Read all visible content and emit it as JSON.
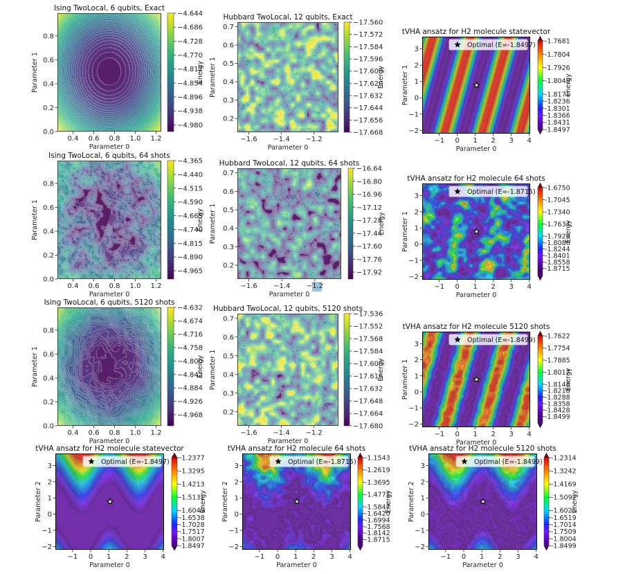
{
  "chart_data": [
    {
      "type": "heatmap",
      "title": "Ising TwoLocal, 6 qubits, Exact",
      "xlabel": "Parameter 0",
      "ylabel": "Parameter 1",
      "xlim": [
        0.25,
        1.25
      ],
      "ylim": [
        0.0,
        0.99
      ],
      "xticks": [
        0.4,
        0.6,
        0.8,
        1.0,
        1.2
      ],
      "xticklabels": [
        "0.4",
        "0.6",
        "0.8",
        "1.0",
        "1.2"
      ],
      "yticks": [
        0.0,
        0.2,
        0.4,
        0.6,
        0.8
      ],
      "yticklabels": [
        "0.0",
        "0.2",
        "0.4",
        "0.6",
        "0.8"
      ],
      "colormap": "viridis",
      "colorbar": {
        "label": "Energy",
        "ticks": [
          "−4.644",
          "−4.686",
          "−4.728",
          "−4.770",
          "−4.812",
          "−4.854",
          "−4.896",
          "−4.938",
          "−4.980"
        ],
        "clim": [
          -5.0,
          -4.644
        ],
        "extend": "neither"
      }
    },
    {
      "type": "heatmap",
      "title": "Hubbard TwoLocal, 12 qubits, Exact",
      "xlabel": "Parameter 0",
      "ylabel": "Parameter 1",
      "xlim": [
        -1.67,
        -1.05
      ],
      "ylim": [
        0.125,
        0.725
      ],
      "xticks": [
        -1.6,
        -1.4,
        -1.2
      ],
      "xticklabels": [
        "−1.6",
        "−1.4",
        "−1.2"
      ],
      "yticks": [
        0.2,
        0.3,
        0.4,
        0.5,
        0.6,
        0.7
      ],
      "yticklabels": [
        "0.2",
        "0.3",
        "0.4",
        "0.5",
        "0.6",
        "0.7"
      ],
      "colormap": "viridis",
      "colorbar": {
        "label": "Energy",
        "ticks": [
          "−17.560",
          "−17.572",
          "−17.584",
          "−17.596",
          "−17.608",
          "−17.620",
          "−17.632",
          "−17.644",
          "−17.656",
          "−17.668"
        ],
        "clim": [
          -17.668,
          -17.56
        ],
        "extend": "neither"
      }
    },
    {
      "type": "heatmap",
      "title": "tVHA ansatz for H2 molecule statevector",
      "xlabel": "Parameter 0",
      "ylabel": "Parameter 1",
      "xlim": [
        -1.95,
        4.05
      ],
      "ylim": [
        -2.2,
        3.75
      ],
      "xticks": [
        -1,
        0,
        1,
        2,
        3,
        4
      ],
      "xticklabels": [
        "−1",
        "0",
        "1",
        "2",
        "3",
        "4"
      ],
      "yticks": [
        -2,
        -1,
        0,
        1,
        2,
        3
      ],
      "yticklabels": [
        "−2",
        "−1",
        "0",
        "1",
        "2",
        "3"
      ],
      "colormap": "rainbow",
      "colorbar": {
        "label": "Energy",
        "ticks": [
          "-1.7681",
          "-1.7804",
          "-1.7926",
          "-1.8048",
          "-1.8171",
          "-1.8236",
          "-1.8301",
          "-1.8366",
          "-1.8431",
          "-1.8497"
        ],
        "clim": [
          -1.8497,
          -1.7681
        ],
        "extend": "both"
      },
      "legend": {
        "label": "Optimal (E=-1.8497)",
        "marker": "star",
        "location": "upper right"
      },
      "optimal_point": [
        1.07,
        0.78
      ]
    },
    {
      "type": "heatmap",
      "title": "Ising TwoLocal, 6 qubits, 64 shots",
      "xlabel": "Parameter 0",
      "ylabel": "Parameter 1",
      "xlim": [
        0.25,
        1.25
      ],
      "ylim": [
        0.0,
        0.99
      ],
      "xticks": [
        0.4,
        0.6,
        0.8,
        1.0,
        1.2
      ],
      "xticklabels": [
        "0.4",
        "0.6",
        "0.8",
        "1.0",
        "1.2"
      ],
      "yticks": [
        0.0,
        0.2,
        0.4,
        0.6,
        0.8
      ],
      "yticklabels": [
        "0.0",
        "0.2",
        "0.4",
        "0.6",
        "0.8"
      ],
      "colormap": "viridis",
      "colorbar": {
        "label": "Energy",
        "ticks": [
          "−4.365",
          "−4.440",
          "−4.515",
          "−4.590",
          "−4.665",
          "−4.740",
          "−4.815",
          "−4.890",
          "−4.965"
        ],
        "clim": [
          -5.01,
          -4.365
        ],
        "extend": "neither"
      }
    },
    {
      "type": "heatmap",
      "title": "Hubbard TwoLocal, 12 qubits, 64 shots",
      "xlabel": "Parameter 0",
      "ylabel": "Parameter 1",
      "xlim": [
        -1.67,
        -1.04
      ],
      "ylim": [
        0.125,
        0.725
      ],
      "xticks": [
        -1.6,
        -1.4,
        -1.2
      ],
      "xticklabels": [
        "−1.6",
        "−1.4",
        "−1.2"
      ],
      "yticks": [
        0.2,
        0.3,
        0.4,
        0.5,
        0.6,
        0.7
      ],
      "yticklabels": [
        "0.2",
        "0.3",
        "0.4",
        "0.5",
        "0.6",
        "0.7"
      ],
      "colormap": "viridis",
      "colorbar": {
        "label": "Energy",
        "ticks": [
          "−16.64",
          "−16.80",
          "−16.96",
          "−17.12",
          "−17.28",
          "−17.44",
          "−17.60",
          "−17.76",
          "−17.92"
        ],
        "clim": [
          -18.005,
          -16.64
        ],
        "extend": "neither"
      }
    },
    {
      "type": "heatmap",
      "title": "tVHA ansatz for H2 molecule 64 shots",
      "xlabel": "Parameter 0",
      "ylabel": "Parameter 1",
      "xlim": [
        -1.95,
        4.05
      ],
      "ylim": [
        -2.2,
        3.75
      ],
      "xticks": [
        -1,
        0,
        1,
        2,
        3,
        4
      ],
      "xticklabels": [
        "−1",
        "0",
        "1",
        "2",
        "3",
        "4"
      ],
      "yticks": [
        -2,
        -1,
        0,
        1,
        2,
        3
      ],
      "yticklabels": [
        "−2",
        "−1",
        "0",
        "1",
        "2",
        "3"
      ],
      "colormap": "rainbow",
      "colorbar": {
        "label": "Energy",
        "ticks": [
          "-1.6750",
          "-1.7045",
          "-1.7340",
          "-1.7634",
          "-1.7929",
          "-1.8086",
          "-1.8244",
          "-1.8401",
          "-1.8558",
          "-1.8715"
        ],
        "clim": [
          -1.889,
          -1.675
        ],
        "extend": "both"
      },
      "legend": {
        "label": "Optimal (E=-1.8715)",
        "marker": "star",
        "location": "upper right"
      },
      "optimal_point": [
        1.07,
        0.78
      ]
    },
    {
      "type": "heatmap",
      "title": "Ising TwoLocal, 6 qubits, 5120 shots",
      "xlabel": "Parameter 0",
      "ylabel": "Parameter 1",
      "xlim": [
        0.25,
        1.25
      ],
      "ylim": [
        0.0,
        0.99
      ],
      "xticks": [
        0.4,
        0.6,
        0.8,
        1.0,
        1.2
      ],
      "xticklabels": [
        "0.4",
        "0.6",
        "0.8",
        "1.0",
        "1.2"
      ],
      "yticks": [
        0.0,
        0.2,
        0.4,
        0.6,
        0.8
      ],
      "yticklabels": [
        "0.0",
        "0.2",
        "0.4",
        "0.6",
        "0.8"
      ],
      "colormap": "viridis",
      "colorbar": {
        "label": "Energy",
        "ticks": [
          "−4.632",
          "−4.674",
          "−4.716",
          "−4.758",
          "−4.800",
          "−4.842",
          "−4.884",
          "−4.926",
          "−4.968"
        ],
        "clim": [
          -5.003,
          -4.632
        ],
        "extend": "neither"
      }
    },
    {
      "type": "heatmap",
      "title": "Hubbard TwoLocal, 12 qubits, 5120 shots",
      "xlabel": "Parameter 0",
      "ylabel": "Parameter 1",
      "xlim": [
        -1.67,
        -1.05
      ],
      "ylim": [
        0.125,
        0.725
      ],
      "xticks": [
        -1.6,
        -1.4,
        -1.2
      ],
      "xticklabels": [
        "−1.6",
        "−1.4",
        "−1.2"
      ],
      "yticks": [
        0.2,
        0.3,
        0.4,
        0.5,
        0.6,
        0.7
      ],
      "yticklabels": [
        "0.2",
        "0.3",
        "0.4",
        "0.5",
        "0.6",
        "0.7"
      ],
      "colormap": "viridis",
      "colorbar": {
        "label": "Energy",
        "ticks": [
          "−17.536",
          "−17.552",
          "−17.568",
          "−17.584",
          "−17.600",
          "−17.616",
          "−17.632",
          "−17.648",
          "−17.664",
          "−17.680"
        ],
        "clim": [
          -17.68,
          -17.536
        ],
        "extend": "neither"
      }
    },
    {
      "type": "heatmap",
      "title": "tVHA ansatz for H2 molecule 5120 shots",
      "xlabel": "Parameter 0",
      "ylabel": "Parameter 1",
      "xlim": [
        -1.95,
        4.05
      ],
      "ylim": [
        -2.2,
        3.75
      ],
      "xticks": [
        -1,
        0,
        1,
        2,
        3,
        4
      ],
      "xticklabels": [
        "−1",
        "0",
        "1",
        "2",
        "3",
        "4"
      ],
      "yticks": [
        -2,
        -1,
        0,
        1,
        2,
        3
      ],
      "yticklabels": [
        "−2",
        "−1",
        "0",
        "1",
        "2",
        "3"
      ],
      "colormap": "rainbow",
      "colorbar": {
        "label": "Energy",
        "ticks": [
          "-1.7622",
          "-1.7754",
          "-1.7885",
          "-1.8017",
          "-1.8148",
          "-1.8218",
          "-1.8288",
          "-1.8358",
          "-1.8428",
          "-1.8499"
        ],
        "clim": [
          -1.857,
          -1.7622
        ],
        "extend": "both"
      },
      "legend": {
        "label": "Optimal (E=-1.8499)",
        "marker": "star",
        "location": "upper right"
      },
      "optimal_point": [
        1.07,
        0.78
      ]
    },
    {
      "type": "heatmap",
      "title": "tVHA ansatz for H2 molecule statevector",
      "xlabel": "Parameter 0",
      "ylabel": "Parameter 2",
      "xlim": [
        -1.95,
        4.05
      ],
      "ylim": [
        -2.2,
        3.75
      ],
      "xticks": [
        -1,
        0,
        1,
        2,
        3,
        4
      ],
      "xticklabels": [
        "−1",
        "0",
        "1",
        "2",
        "3",
        "4"
      ],
      "yticks": [
        -2,
        -1,
        0,
        1,
        2,
        3
      ],
      "yticklabels": [
        "−2",
        "−1",
        "0",
        "1",
        "2",
        "3"
      ],
      "colormap": "rainbow",
      "colorbar": {
        "label": "Energy",
        "ticks": [
          "-1.2377",
          "-1.3295",
          "-1.4213",
          "-1.5131",
          "-1.6049",
          "-1.6538",
          "-1.7028",
          "-1.7517",
          "-1.8007",
          "-1.8497"
        ],
        "clim": [
          -1.8497,
          -1.2377
        ],
        "extend": "both"
      },
      "legend": {
        "label": "Optimal (E=-1.8497)",
        "marker": "star",
        "location": "upper right"
      },
      "optimal_point": [
        1.07,
        0.78
      ]
    },
    {
      "type": "heatmap",
      "title": "tVHA ansatz for H2 molecule 64 shots",
      "xlabel": "Parameter 0",
      "ylabel": "Parameter 2",
      "xlim": [
        -1.95,
        4.05
      ],
      "ylim": [
        -2.2,
        3.75
      ],
      "xticks": [
        -1,
        0,
        1,
        2,
        3,
        4
      ],
      "xticklabels": [
        "−1",
        "0",
        "1",
        "2",
        "3",
        "4"
      ],
      "yticks": [
        -2,
        -1,
        0,
        1,
        2,
        3
      ],
      "yticklabels": [
        "−2",
        "−1",
        "0",
        "1",
        "2",
        "3"
      ],
      "colormap": "rainbow",
      "colorbar": {
        "label": "Energy",
        "ticks": [
          "-1.1543",
          "-1.2619",
          "-1.3695",
          "-1.4771",
          "-1.5847",
          "-1.6420",
          "-1.6994",
          "-1.7568",
          "-1.8142",
          "-1.8715"
        ],
        "clim": [
          -1.925,
          -1.1543
        ],
        "extend": "both"
      },
      "legend": {
        "label": "Optimal (E=-1.8715)",
        "marker": "star",
        "location": "upper right"
      },
      "optimal_point": [
        1.07,
        0.78
      ]
    },
    {
      "type": "heatmap",
      "title": "tVHA ansatz for H2 molecule 5120 shots",
      "xlabel": "Parameter 0",
      "ylabel": "Parameter 2",
      "xlim": [
        -1.95,
        4.05
      ],
      "ylim": [
        -2.2,
        3.75
      ],
      "xticks": [
        -1,
        0,
        1,
        2,
        3,
        4
      ],
      "xticklabels": [
        "−1",
        "0",
        "1",
        "2",
        "3",
        "4"
      ],
      "yticks": [
        -2,
        -1,
        0,
        1,
        2,
        3
      ],
      "yticklabels": [
        "−2",
        "−1",
        "0",
        "1",
        "2",
        "3"
      ],
      "colormap": "rainbow",
      "colorbar": {
        "label": "Energy",
        "ticks": [
          "-1.2314",
          "-1.3242",
          "-1.4169",
          "-1.5097",
          "-1.6025",
          "-1.6519",
          "-1.7014",
          "-1.7509",
          "-1.8004",
          "-1.8499"
        ],
        "clim": [
          -1.8499,
          -1.2314
        ],
        "extend": "both"
      },
      "legend": {
        "label": "Optimal (E=-1.8499)",
        "marker": "star",
        "location": "upper right"
      },
      "optimal_point": [
        1.07,
        0.78
      ]
    }
  ]
}
